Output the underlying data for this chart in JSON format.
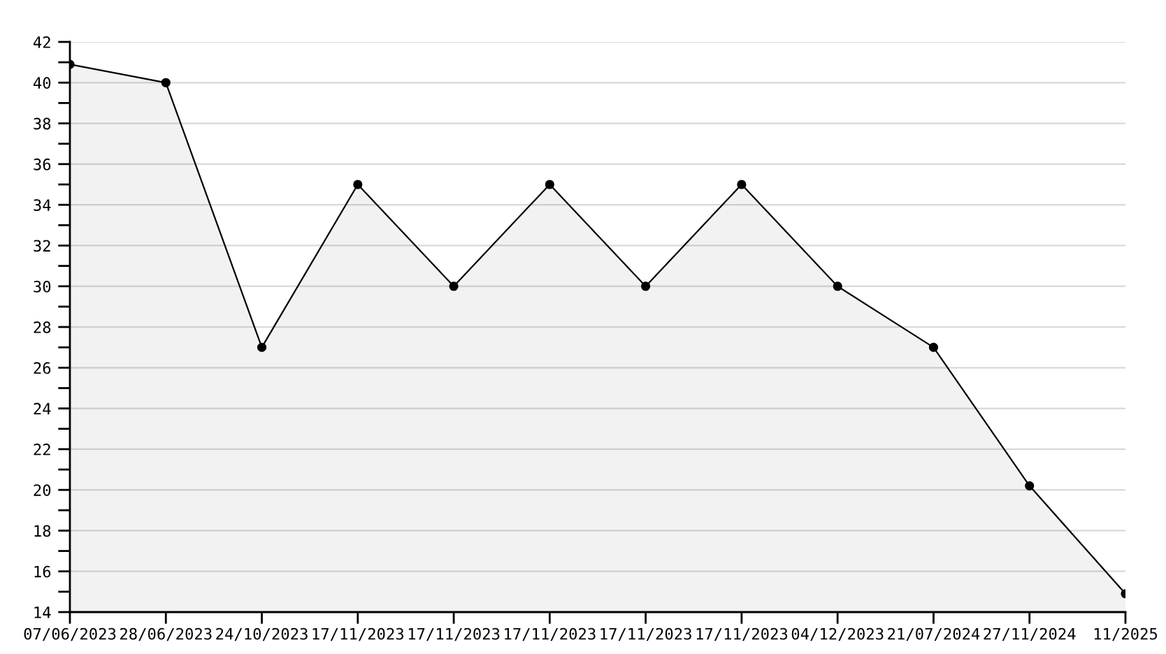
{
  "chart_data": {
    "type": "area",
    "categories": [
      "07/06/2023",
      "28/06/2023",
      "24/10/2023",
      "17/11/2023",
      "17/11/2023",
      "17/11/2023",
      "17/11/2023",
      "17/11/2023",
      "04/12/2023",
      "21/07/2024",
      "27/11/2024",
      "11/2025"
    ],
    "series": [
      {
        "color": "#000000",
        "values": [
          40.9,
          40,
          27,
          35,
          30,
          35,
          30,
          35,
          30,
          27,
          20.2,
          14.9
        ]
      }
    ],
    "ylim": [
      14,
      42
    ],
    "yticks": [
      14,
      {
        "value": 15,
        "label": null
      },
      16,
      {
        "value": 17,
        "label": null
      },
      18,
      {
        "value": 19,
        "label": null
      },
      20,
      {
        "value": 21,
        "label": null
      },
      22,
      {
        "value": 23,
        "label": null
      },
      24,
      {
        "value": 25,
        "label": null
      },
      26,
      {
        "value": 27,
        "label": null
      },
      28,
      {
        "value": 29,
        "label": null
      },
      30,
      {
        "value": 31,
        "label": null
      },
      32,
      {
        "value": 33,
        "label": null
      },
      34,
      {
        "value": 35,
        "label": null
      },
      36,
      {
        "value": 37,
        "label": null
      },
      38,
      {
        "value": 39,
        "label": null
      },
      40,
      {
        "value": 41,
        "label": null
      },
      42
    ],
    "grid": "y",
    "marker": "circle",
    "line_style": "solid"
  }
}
